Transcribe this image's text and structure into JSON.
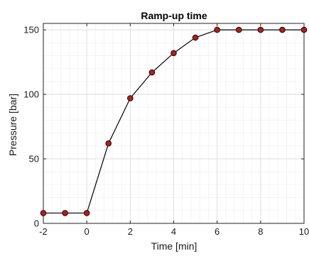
{
  "chart_data": {
    "type": "line",
    "title": "Ramp-up time",
    "xlabel": "Time [min]",
    "ylabel": "Pressure [bar]",
    "xlim": [
      -2,
      10
    ],
    "ylim": [
      0,
      155
    ],
    "xticks": [
      -2,
      0,
      2,
      4,
      6,
      8,
      10
    ],
    "yticks": [
      0,
      50,
      100,
      150
    ],
    "xminor_step": 0.4,
    "yminor_step": 10,
    "grid": true,
    "minor_grid": true,
    "series": [
      {
        "x": [
          -2,
          -1,
          0,
          1,
          2,
          3,
          4,
          5,
          6,
          7,
          8,
          9,
          10
        ],
        "y": [
          8,
          8,
          8,
          62,
          97,
          117,
          132,
          144,
          150,
          150,
          150,
          150,
          150
        ]
      }
    ],
    "colors": {
      "line": "#000000",
      "marker_fill": "#b01e1e",
      "marker_edge": "#2a0606",
      "axes_box": "#222222",
      "major_grid": "#d9d9d9",
      "minor_grid": "#efefef"
    }
  }
}
